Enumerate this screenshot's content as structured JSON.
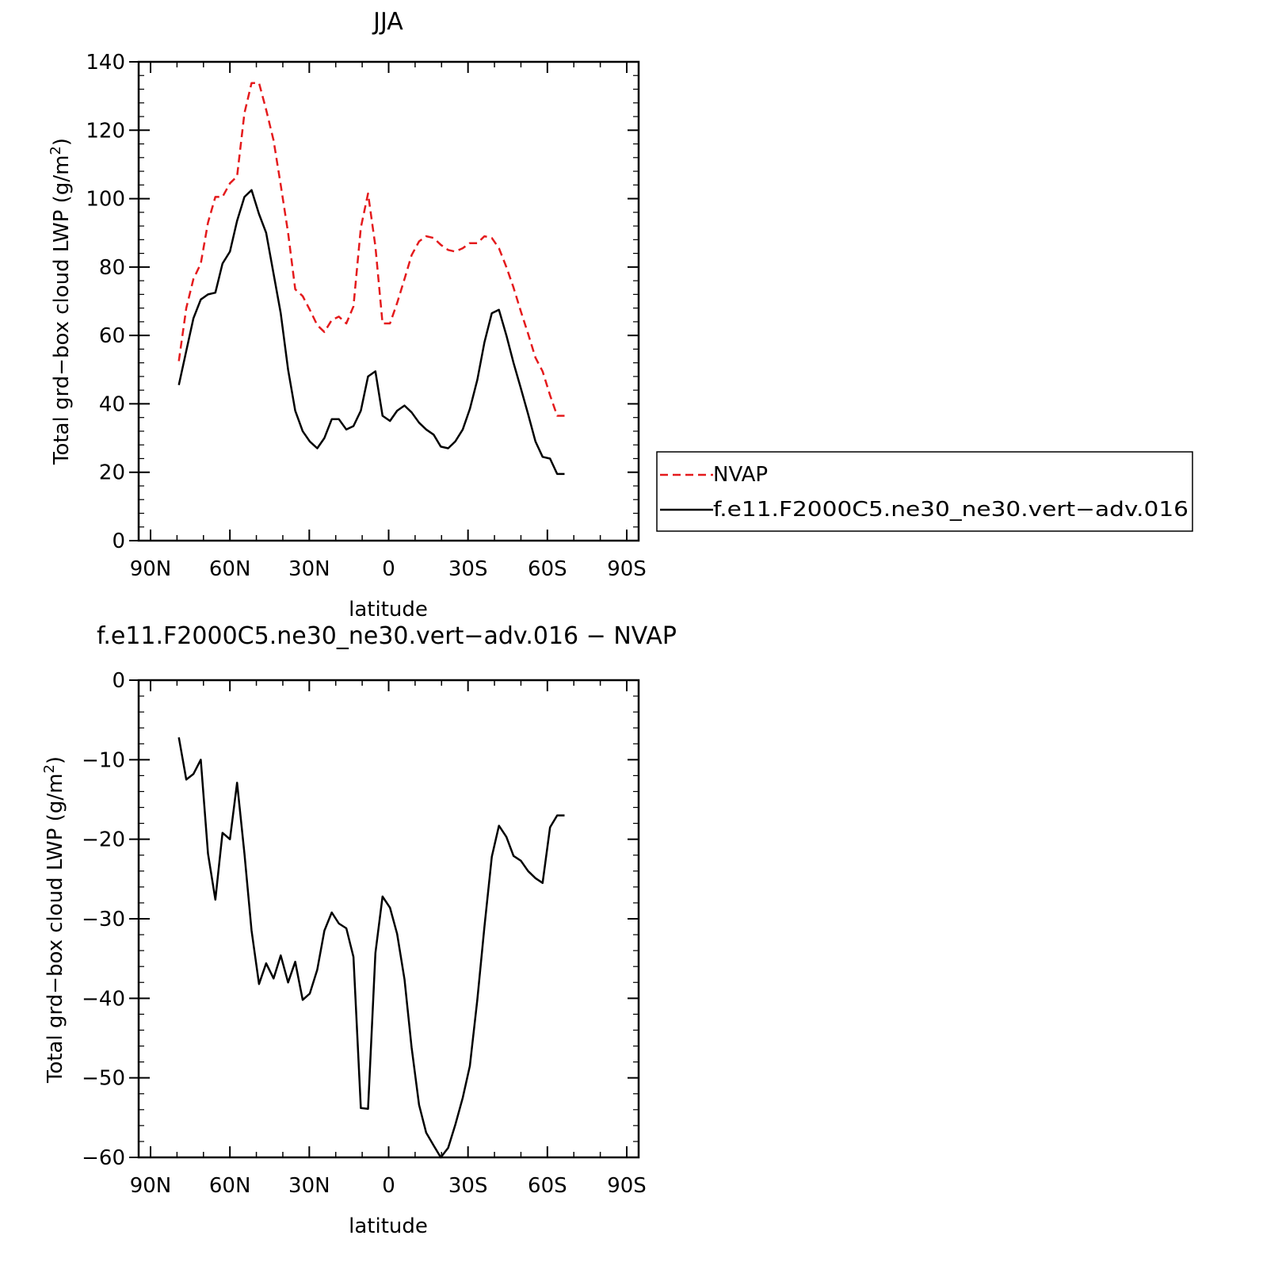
{
  "colors": {
    "nvap": "#e41a1c",
    "model": "#000000",
    "axes": "#000000"
  },
  "chart_data": [
    {
      "type": "line",
      "title": "JJA",
      "xlabel": "latitude",
      "ylabel": "Total grd−box cloud LWP",
      "ylabel_unit_base": " (g/m",
      "ylabel_unit_exp": "2",
      "ylabel_unit_close": ")",
      "xlim": [
        90,
        -90
      ],
      "ylim": [
        0,
        140
      ],
      "xticks": [
        90,
        60,
        30,
        0,
        -30,
        -60,
        -90
      ],
      "xtick_labels": [
        "90N",
        "60N",
        "30N",
        "0",
        "30S",
        "60S",
        "90S"
      ],
      "yticks": [
        0,
        20,
        40,
        60,
        80,
        100,
        120,
        140
      ],
      "ytick_labels": [
        "0",
        "20",
        "40",
        "60",
        "80",
        "100",
        "120",
        "140"
      ],
      "legend": {
        "position": "right"
      },
      "series": [
        {
          "name": "NVAP",
          "style": "dashed",
          "color": "#e41a1c",
          "x": [
            79.3,
            76.5,
            73.8,
            71.0,
            68.3,
            65.5,
            62.8,
            60.0,
            57.3,
            54.5,
            51.8,
            49.0,
            46.3,
            43.5,
            40.8,
            38.0,
            35.3,
            32.5,
            29.8,
            27.0,
            24.3,
            21.5,
            18.8,
            16.0,
            13.3,
            10.5,
            7.8,
            5.0,
            2.3,
            -0.5,
            -3.2,
            -6.0,
            -8.7,
            -11.5,
            -14.2,
            -17.0,
            -19.7,
            -22.5,
            -25.2,
            -28.0,
            -30.7,
            -33.5,
            -36.2,
            -39.0,
            -41.7,
            -44.5,
            -47.2,
            -50.0,
            -52.7,
            -55.5,
            -58.2,
            -61.0,
            -63.7,
            -66.5
          ],
          "y": [
            52.5,
            68,
            76.5,
            81,
            93,
            100.5,
            100.5,
            104.5,
            106.5,
            125,
            133.8,
            133.8,
            126,
            117,
            104,
            90,
            73.5,
            71.5,
            67.5,
            63,
            61,
            64.5,
            65.5,
            63.5,
            68.5,
            91.5,
            101.5,
            86,
            63.5,
            63.5,
            69.5,
            76.5,
            83.5,
            87.5,
            89,
            88.5,
            86.5,
            85,
            84.5,
            85.5,
            87,
            87,
            89,
            88.5,
            85.5,
            80,
            74,
            67,
            60.5,
            53.5,
            49.5,
            42.5,
            36.5,
            36.5
          ]
        },
        {
          "name": "f.e11.F2000C5.ne30_ne30.vert−adv.016",
          "style": "solid",
          "color": "#000000",
          "x": [
            79.3,
            76.5,
            73.8,
            71.0,
            68.3,
            65.5,
            62.8,
            60.0,
            57.3,
            54.5,
            51.8,
            49.0,
            46.3,
            43.5,
            40.8,
            38.0,
            35.3,
            32.5,
            29.8,
            27.0,
            24.3,
            21.5,
            18.8,
            16.0,
            13.3,
            10.5,
            7.8,
            5.0,
            2.3,
            -0.5,
            -3.2,
            -6.0,
            -8.7,
            -11.5,
            -14.2,
            -17.0,
            -19.7,
            -22.5,
            -25.2,
            -28.0,
            -30.7,
            -33.5,
            -36.2,
            -39.0,
            -41.7,
            -44.5,
            -47.2,
            -50.0,
            -52.7,
            -55.5,
            -58.2,
            -61.0,
            -63.7,
            -66.5
          ],
          "y": [
            45.5,
            55.5,
            65,
            70.5,
            72,
            72.5,
            81,
            84.5,
            93.5,
            100.5,
            102.5,
            95.5,
            90,
            78,
            66.5,
            50,
            38,
            32,
            29,
            27,
            30,
            35.5,
            35.5,
            32.5,
            33.5,
            38,
            48,
            49.5,
            36.5,
            35,
            38,
            39.5,
            37.5,
            34.5,
            32.5,
            31,
            27.5,
            27,
            29,
            32.5,
            38.5,
            47,
            58,
            66.5,
            67.5,
            60,
            52,
            44.5,
            37,
            29,
            24.5,
            24,
            19.5,
            19.5
          ]
        }
      ]
    },
    {
      "type": "line",
      "title": "f.e11.F2000C5.ne30_ne30.vert−adv.016 − NVAP",
      "xlabel": "latitude",
      "ylabel": "Total grd−box cloud LWP",
      "ylabel_unit_base": " (g/m",
      "ylabel_unit_exp": "2",
      "ylabel_unit_close": ")",
      "xlim": [
        90,
        -90
      ],
      "ylim": [
        -60,
        0
      ],
      "xticks": [
        90,
        60,
        30,
        0,
        -30,
        -60,
        -90
      ],
      "xtick_labels": [
        "90N",
        "60N",
        "30N",
        "0",
        "30S",
        "60S",
        "90S"
      ],
      "yticks": [
        0,
        -10,
        -20,
        -30,
        -40,
        -50,
        -60
      ],
      "ytick_labels": [
        "0",
        "−10",
        "−20",
        "−30",
        "−40",
        "−50",
        "−60"
      ],
      "series": [
        {
          "style": "solid",
          "color": "#000000",
          "x": [
            79.3,
            76.5,
            73.8,
            71.0,
            68.3,
            65.5,
            62.8,
            60.0,
            57.3,
            54.5,
            51.8,
            49.0,
            46.3,
            43.5,
            40.8,
            38.0,
            35.3,
            32.5,
            29.8,
            27.0,
            24.3,
            21.5,
            18.8,
            16.0,
            13.3,
            10.5,
            7.8,
            5.0,
            2.3,
            -0.5,
            -3.2,
            -6.0,
            -8.7,
            -11.5,
            -14.2,
            -17.0,
            -19.7,
            -22.5,
            -25.2,
            -28.0,
            -30.7,
            -33.5,
            -36.2,
            -39.0,
            -41.7,
            -44.5,
            -47.2,
            -50.0,
            -52.7,
            -55.5,
            -58.2,
            -61.0,
            -63.7,
            -66.5
          ],
          "y": [
            -7.2,
            -12.5,
            -11.8,
            -10.0,
            -21.8,
            -27.6,
            -19.2,
            -20.0,
            -12.9,
            -21.8,
            -31.5,
            -38.2,
            -35.6,
            -37.5,
            -34.6,
            -38.0,
            -35.4,
            -40.2,
            -39.4,
            -36.4,
            -31.5,
            -29.2,
            -30.6,
            -31.2,
            -34.8,
            -53.8,
            -53.9,
            -34.3,
            -27.2,
            -28.6,
            -31.9,
            -37.6,
            -46.2,
            -53.4,
            -56.9,
            -58.5,
            -60.0,
            -58.8,
            -55.9,
            -52.5,
            -48.5,
            -40.2,
            -31.0,
            -22.2,
            -18.3,
            -19.7,
            -22.1,
            -22.7,
            -24.0,
            -24.9,
            -25.5,
            -18.5,
            -17.0,
            -17.0
          ]
        }
      ]
    }
  ]
}
